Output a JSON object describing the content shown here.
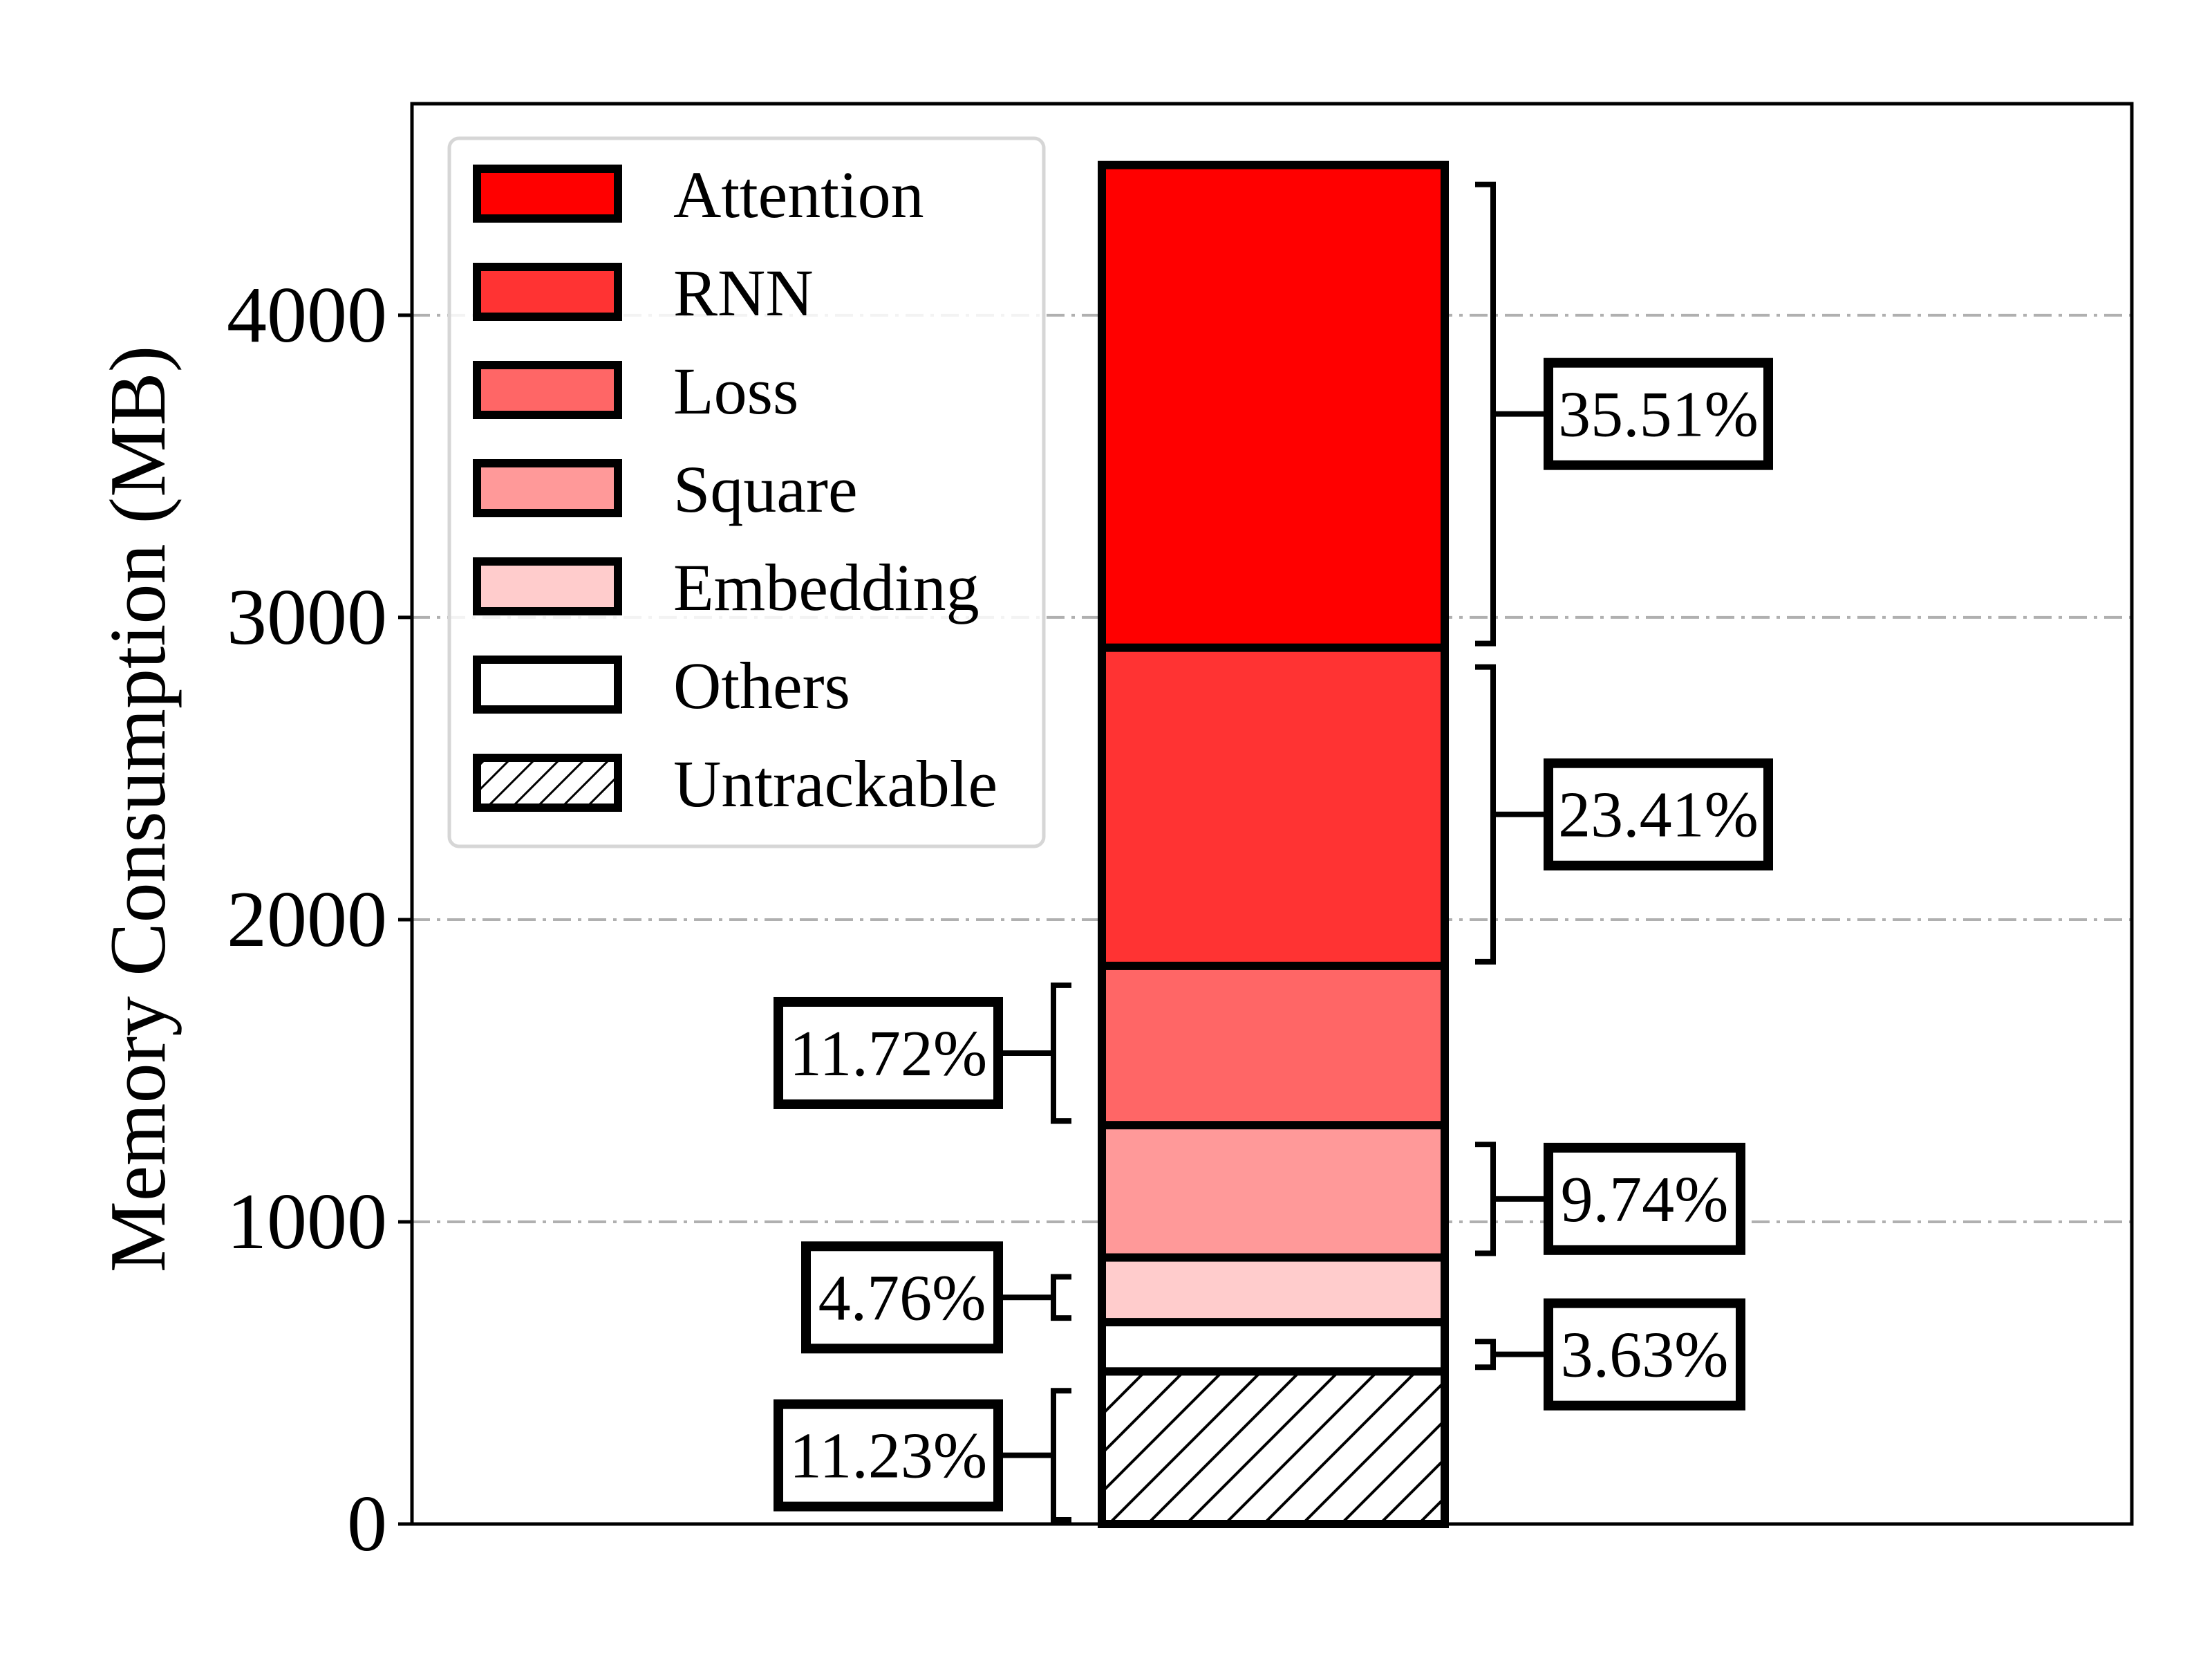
{
  "chart_data": {
    "type": "bar",
    "stacked": true,
    "ylabel": "Memory Consumption (MB)",
    "xlabel": "",
    "ylim": [
      0,
      4700
    ],
    "yticks": [
      0,
      1000,
      2000,
      3000,
      4000
    ],
    "grid": "horizontal dash-dot",
    "legend_position": "top-left",
    "series": [
      {
        "name": "Untrackable",
        "value": 505,
        "percent_label": "11.23%",
        "color": "#ffffff",
        "pattern": "hatch",
        "label_side": "left"
      },
      {
        "name": "Others",
        "value": 163,
        "percent_label": "3.63%",
        "color": "#ffffff",
        "label_side": "right"
      },
      {
        "name": "Embedding",
        "value": 214,
        "percent_label": "4.76%",
        "color": "#ffcccc",
        "label_side": "left"
      },
      {
        "name": "Square",
        "value": 438,
        "percent_label": "9.74%",
        "color": "#ff9999",
        "label_side": "right"
      },
      {
        "name": "Loss",
        "value": 527,
        "percent_label": "11.72%",
        "color": "#ff6666",
        "label_side": "left"
      },
      {
        "name": "RNN",
        "value": 1053,
        "percent_label": "23.41%",
        "color": "#ff3333",
        "label_side": "right"
      },
      {
        "name": "Attention",
        "value": 1597,
        "percent_label": "35.51%",
        "color": "#ff0000",
        "label_side": "right"
      }
    ],
    "legend_order": [
      "Attention",
      "RNN",
      "Loss",
      "Square",
      "Embedding",
      "Others",
      "Untrackable"
    ]
  }
}
